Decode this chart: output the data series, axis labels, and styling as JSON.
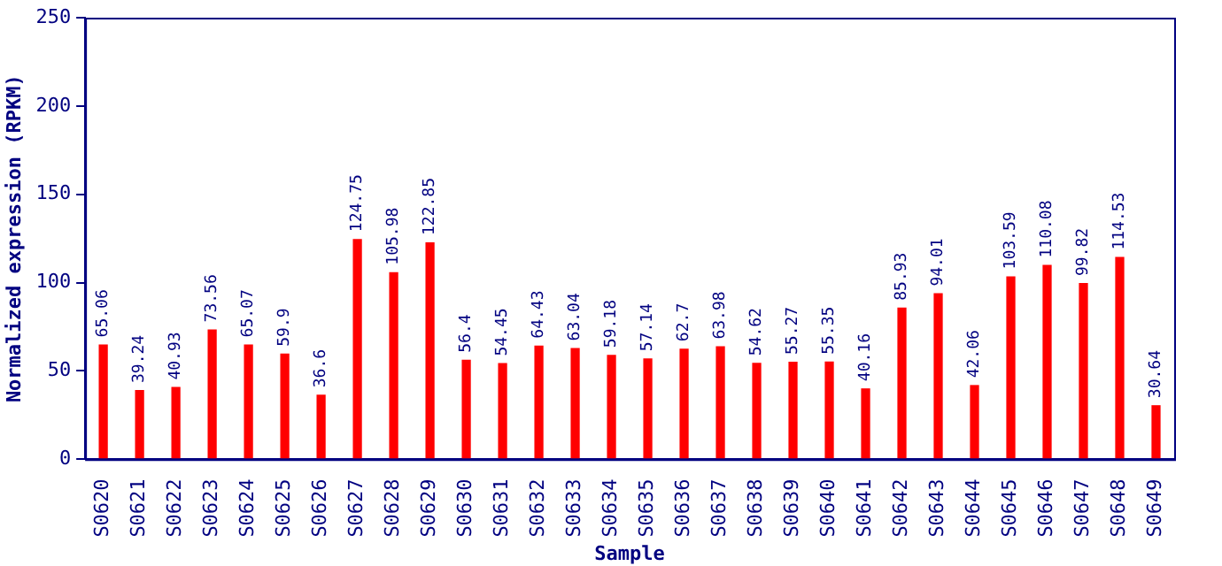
{
  "chart_data": {
    "type": "bar",
    "xlabel": "Sample",
    "ylabel": "Normalized expression (RPKM)",
    "categories": [
      "S0620",
      "S0621",
      "S0622",
      "S0623",
      "S0624",
      "S0625",
      "S0626",
      "S0627",
      "S0628",
      "S0629",
      "S0630",
      "S0631",
      "S0632",
      "S0633",
      "S0634",
      "S0635",
      "S0636",
      "S0637",
      "S0638",
      "S0639",
      "S0640",
      "S0641",
      "S0642",
      "S0643",
      "S0644",
      "S0645",
      "S0646",
      "S0647",
      "S0648",
      "S0649"
    ],
    "values": [
      65.06,
      39.24,
      40.93,
      73.56,
      65.07,
      59.9,
      36.6,
      124.75,
      105.98,
      122.85,
      56.4,
      54.45,
      64.43,
      63.04,
      59.18,
      57.14,
      62.7,
      63.98,
      54.62,
      55.27,
      55.35,
      40.16,
      85.93,
      94.01,
      42.06,
      103.59,
      110.08,
      99.82,
      114.53,
      30.64
    ],
    "color": "#ff0000",
    "ylim": [
      0,
      250
    ],
    "yticks": [
      0,
      50,
      100,
      150,
      200,
      250
    ],
    "grid": false,
    "legend": false,
    "data_labels": true
  }
}
